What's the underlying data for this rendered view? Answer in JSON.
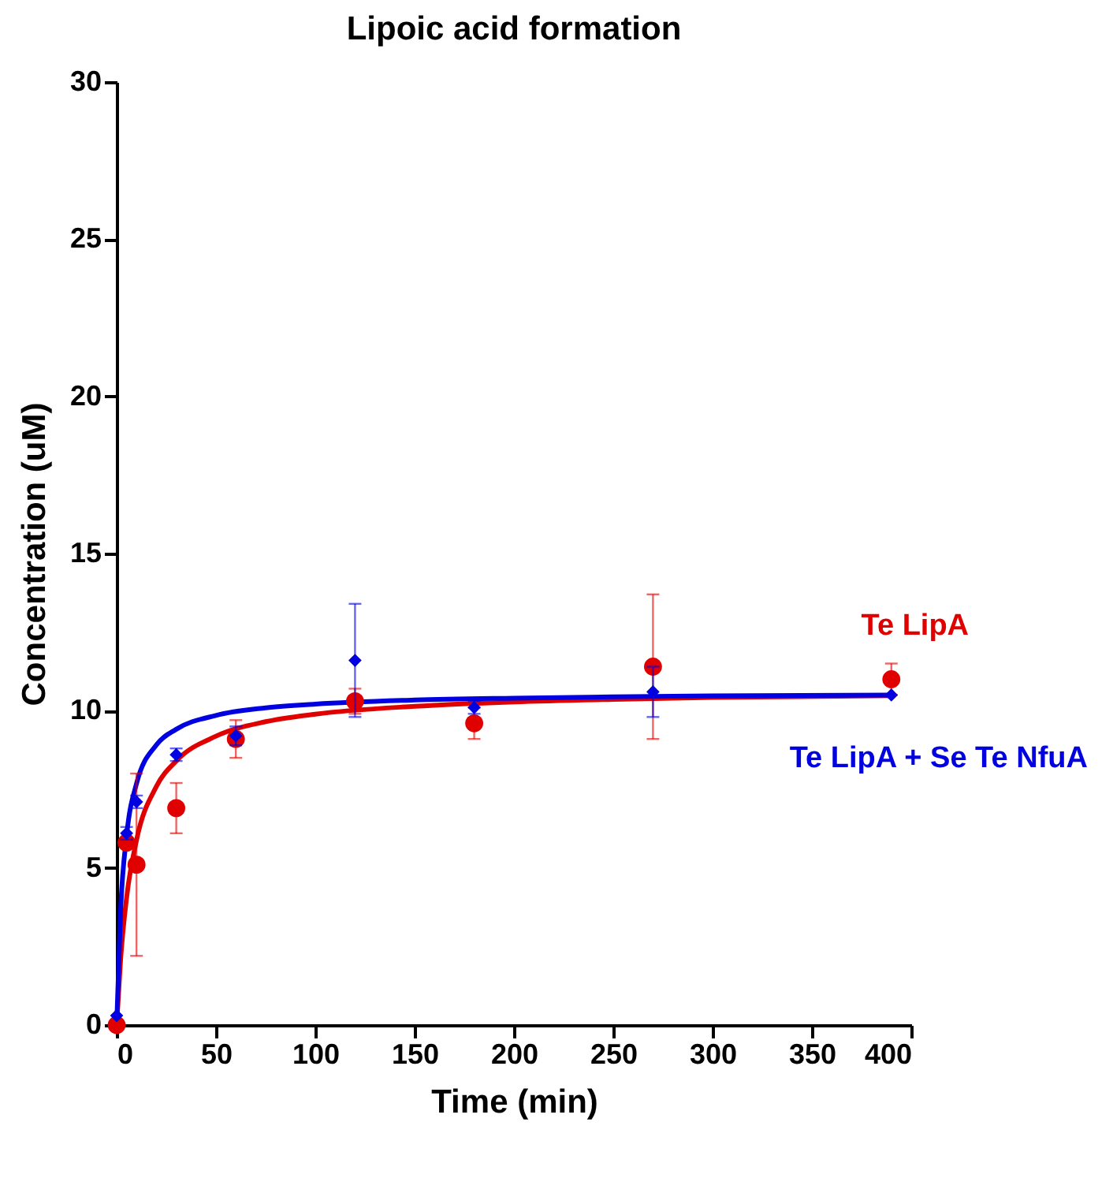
{
  "chart_data": {
    "type": "scatter",
    "title": "Lipoic acid formation",
    "xlabel": "Time (min)",
    "ylabel": "Concentration (uM)",
    "xlim": [
      0,
      400
    ],
    "xticks": [
      0,
      50,
      100,
      150,
      200,
      250,
      300,
      350,
      400
    ],
    "ylim": [
      0,
      30
    ],
    "yticks": [
      0,
      5,
      10,
      15,
      20,
      25,
      30
    ],
    "grid": false,
    "series": [
      {
        "type": "line",
        "color": "#e00000",
        "marker": "none",
        "x": [
          0,
          2,
          5,
          10,
          20,
          30,
          50,
          75,
          100,
          150,
          200,
          250,
          300,
          390
        ],
        "values": [
          0,
          2.1,
          4.05,
          5.88,
          7.59,
          8.4,
          9.19,
          9.65,
          9.89,
          10.14,
          10.28,
          10.36,
          10.42,
          10.48
        ]
      },
      {
        "type": "line",
        "color": "#0000e0",
        "marker": "none",
        "x": [
          0,
          2,
          5,
          10,
          20,
          30,
          50,
          75,
          100,
          150,
          200,
          250,
          300,
          390
        ],
        "values": [
          0,
          3.66,
          6.02,
          7.68,
          8.91,
          9.41,
          9.85,
          10.09,
          10.21,
          10.34,
          10.4,
          10.44,
          10.47,
          10.5
        ]
      },
      {
        "name": "Te LipA",
        "color": "#e00000",
        "marker": "circle",
        "x": [
          0,
          5,
          10,
          30,
          60,
          120,
          180,
          270,
          390
        ],
        "values": [
          0,
          5.8,
          5.1,
          6.9,
          9.1,
          10.3,
          9.6,
          11.4,
          11.0
        ],
        "errors": [
          null,
          null,
          2.9,
          0.8,
          0.6,
          0.4,
          0.5,
          2.3,
          0.5
        ]
      },
      {
        "name": "Te LipA + Se Te NfuA",
        "color": "#0000e0",
        "marker": "diamond",
        "x": [
          0,
          5,
          10,
          30,
          60,
          120,
          180,
          270,
          390
        ],
        "values": [
          0.3,
          6.1,
          7.1,
          8.6,
          9.2,
          11.6,
          10.1,
          10.6,
          10.5
        ],
        "errors": [
          null,
          0.2,
          0.2,
          0.2,
          0.3,
          1.8,
          0.2,
          0.8,
          null
        ]
      }
    ]
  }
}
